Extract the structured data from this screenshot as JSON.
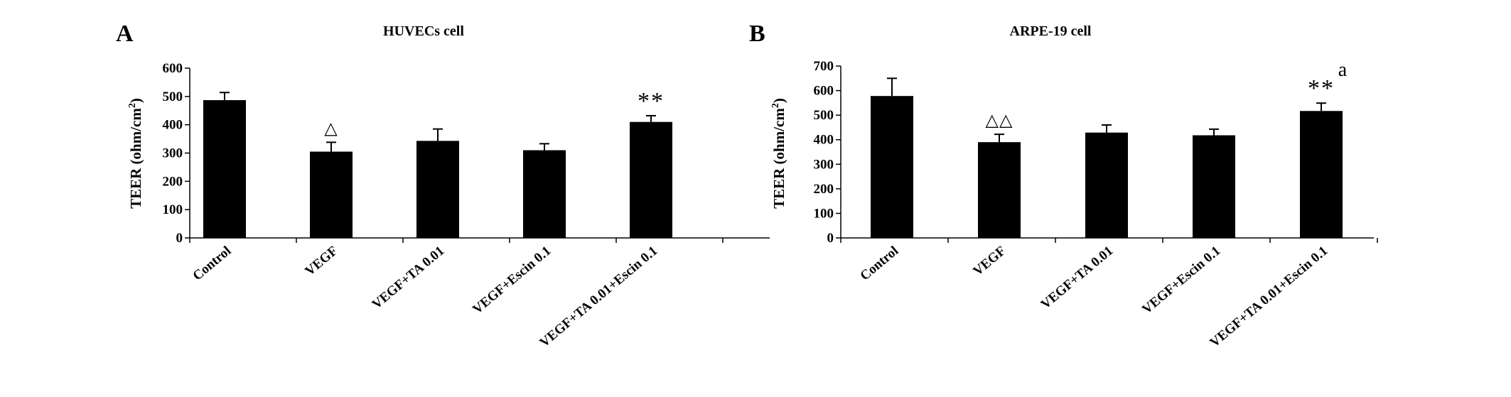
{
  "colors": {
    "bar": "#000000",
    "axis": "#000000",
    "background": "#ffffff"
  },
  "chart_data": [
    {
      "panel_letter": "A",
      "type": "bar",
      "title": "HUVECs cell",
      "ylabel_main": "TEER (ohm/cm",
      "ylabel_sup": "2",
      "ylabel_close": ")",
      "ylim": [
        0,
        600
      ],
      "yticks": [
        0,
        100,
        200,
        300,
        400,
        500,
        600
      ],
      "grid": false,
      "categories": [
        "Control",
        "VEGF",
        "VEGF+TA 0.01",
        "VEGF+Escin 0.1",
        "VEGF+TA 0.01+Escin 0.1"
      ],
      "values": [
        487,
        305,
        343,
        310,
        410
      ],
      "errors": [
        27,
        33,
        42,
        23,
        22
      ],
      "annotations": [
        "",
        "△",
        "",
        "",
        "**"
      ],
      "annotations_extra": [
        "",
        "",
        "",
        "",
        ""
      ]
    },
    {
      "panel_letter": "B",
      "type": "bar",
      "title": "ARPE-19 cell",
      "ylabel_main": "TEER (ohm/cm",
      "ylabel_sup": "2",
      "ylabel_close": ")",
      "ylim": [
        0,
        700
      ],
      "yticks": [
        0,
        100,
        200,
        300,
        400,
        500,
        600,
        700
      ],
      "grid": false,
      "categories": [
        "Control",
        "VEGF",
        "VEGF+TA 0.01",
        "VEGF+Escin 0.1",
        "VEGF+TA 0.01+Escin 0.1"
      ],
      "values": [
        578,
        390,
        429,
        418,
        517
      ],
      "errors": [
        72,
        32,
        31,
        25,
        32
      ],
      "annotations": [
        "",
        "△△",
        "",
        "",
        "**"
      ],
      "annotations_extra": [
        "",
        "",
        "",
        "",
        "a"
      ]
    }
  ]
}
